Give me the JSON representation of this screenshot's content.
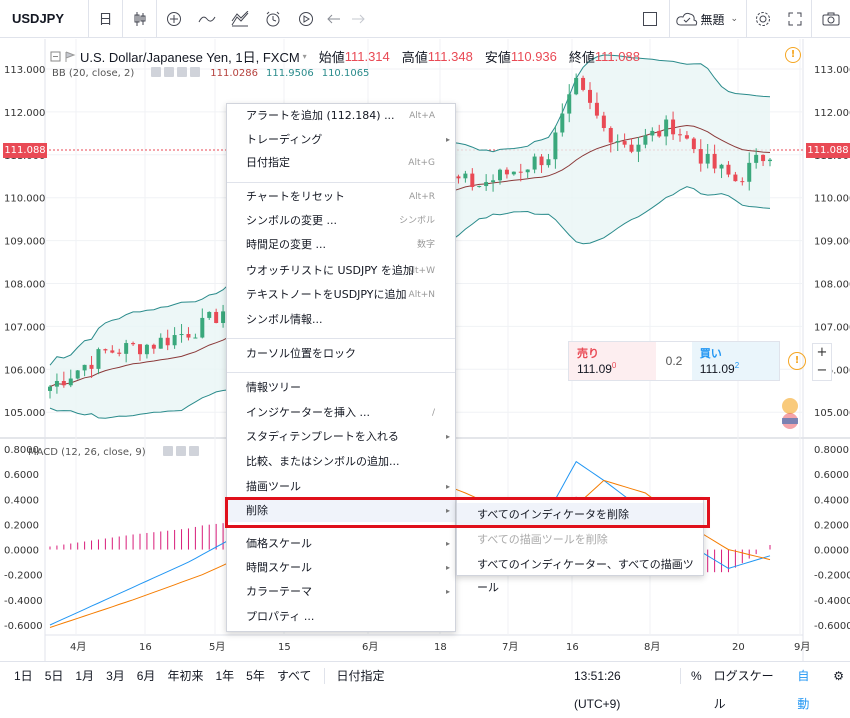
{
  "toolbar": {
    "symbol": "USDJPY",
    "interval": "日",
    "theme_label": "無題"
  },
  "legend": {
    "title": "U.S. Dollar/Japanese Yen, 1日, FXCM",
    "open_label": "始値",
    "open": "111.314",
    "high_label": "高値",
    "high": "111.348",
    "low_label": "安値",
    "low": "110.936",
    "close_label": "終値",
    "close": "111.088"
  },
  "bb": {
    "label": "BB (20, close, 2)",
    "v1": "111.0286",
    "v2": "111.9506",
    "v3": "110.1065"
  },
  "macd": {
    "label": "MACD (12, 26, close, 9)"
  },
  "price_axis": [
    "113.000",
    "112.000",
    "111.000",
    "110.000",
    "109.000",
    "108.000",
    "107.000",
    "106.000",
    "105.000"
  ],
  "current_price": "111.088",
  "macd_axis": [
    "0.8000",
    "0.6000",
    "0.4000",
    "0.2000",
    "0.0000",
    "-0.2000",
    "-0.4000",
    "-0.6000"
  ],
  "time_axis": [
    "4月",
    "16",
    "5月",
    "15",
    "6月",
    "18",
    "7月",
    "16",
    "8月",
    "20",
    "9月"
  ],
  "trade": {
    "sell_label": "売り",
    "sell_price": "111.09",
    "sell_sup": "0",
    "spread": "0.2",
    "buy_label": "買い",
    "buy_price": "111.09",
    "buy_sup": "2"
  },
  "menu": {
    "items": [
      {
        "label": "アラートを追加 (112.184) ...",
        "shortcut": "Alt+A"
      },
      {
        "label": "トレーディング",
        "arrow": "▸"
      },
      {
        "label": "日付指定",
        "shortcut": "Alt+G"
      },
      {
        "label": "チャートをリセット",
        "shortcut": "Alt+R"
      },
      {
        "label": "シンボルの変更 ...",
        "shortcut": "シンボル"
      },
      {
        "label": "時間足の変更 ...",
        "shortcut": "数字"
      },
      {
        "label": "ウオッチリストに USDJPY を追加",
        "shortcut": "Alt+W"
      },
      {
        "label": "テキストノートをUSDJPYに追加",
        "shortcut": "Alt+N"
      },
      {
        "label": "シンボル情報..."
      },
      {
        "label": "カーソル位置をロック"
      },
      {
        "label": "情報ツリー"
      },
      {
        "label": "インジケーターを挿入 ...",
        "shortcut": "/"
      },
      {
        "label": "スタディテンプレートを入れる",
        "arrow": "▸"
      },
      {
        "label": "比較、またはシンボルの追加..."
      },
      {
        "label": "描画ツール",
        "arrow": "▸"
      },
      {
        "label": "削除",
        "arrow": "▸"
      },
      {
        "label": "価格スケール",
        "arrow": "▸"
      },
      {
        "label": "時間スケール",
        "arrow": "▸"
      },
      {
        "label": "カラーテーマ",
        "arrow": "▸"
      },
      {
        "label": "プロパティ ..."
      }
    ]
  },
  "submenu": {
    "items": [
      "すべてのインディケータを削除",
      "すべての描画ツールを削除",
      "すべてのインディケーター、すべての描画ツール"
    ]
  },
  "bottom": {
    "ranges": [
      "1日",
      "5日",
      "1月",
      "3月",
      "6月",
      "年初来",
      "1年",
      "5年",
      "すべて"
    ],
    "goto": "日付指定",
    "time": "13:51:26 (UTC+9)",
    "percent": "%",
    "log": "ログスケール",
    "auto": "自動"
  },
  "colors": {
    "up": "#3aa87c",
    "down": "#e94a55",
    "bb_band": "#2a8b8b",
    "bb_mid": "#8b3a3a",
    "macd": "#2196f3",
    "signal": "#f57c00",
    "hist": "#d81b79",
    "highlight": "#e0101b"
  }
}
